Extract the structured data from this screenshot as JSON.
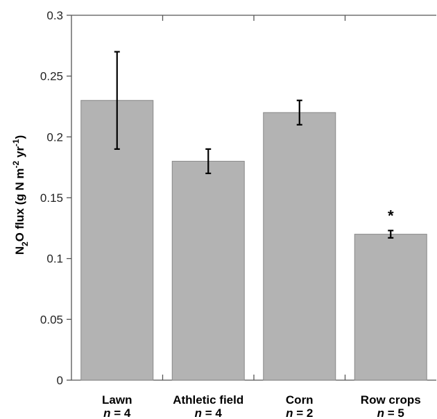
{
  "chart_data": {
    "type": "bar",
    "categories": [
      "Lawn",
      "Athletic field",
      "Corn",
      "Row crops"
    ],
    "n_values": [
      4,
      4,
      2,
      5
    ],
    "values": [
      0.23,
      0.18,
      0.22,
      0.12
    ],
    "errors": [
      0.04,
      0.01,
      0.01,
      0.003
    ],
    "significance": [
      "",
      "",
      "",
      "*"
    ],
    "ylim": [
      0,
      0.3
    ],
    "yticks": [
      "0",
      "0.05",
      "0.1",
      "0.15",
      "0.2",
      "0.25",
      "0.3"
    ],
    "ylabel": {
      "prefix": "N",
      "sub": "2",
      "middle": "O flux (g N m",
      "sup1": "-2",
      "between": " yr",
      "sup2": "-1",
      "suffix": ")"
    },
    "n_prefix": "n",
    "n_equals": " = ",
    "bar_color": "#b3b3b3",
    "bar_stroke": "#888888",
    "axis_color": "#555555",
    "grid": false
  }
}
